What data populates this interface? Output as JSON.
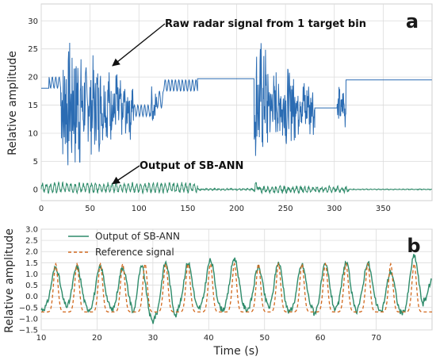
{
  "colors": {
    "raw": "#2b6cb3",
    "ann": "#2e8b6a",
    "reference": "#d2691e",
    "grid": "#dcdcdc",
    "axis": "#7f7f7f"
  },
  "chart_data": [
    {
      "type": "line",
      "panel_label": "a",
      "title": "",
      "xlabel": "",
      "ylabel": "Relative amplitude",
      "xlim": [
        0,
        400
      ],
      "ylim": [
        -2,
        33
      ],
      "xticks": [
        0,
        50,
        100,
        150,
        200,
        250,
        300,
        350
      ],
      "xtick_labels": [
        "0",
        "50",
        "100",
        "150",
        "200",
        "250",
        "300",
        "350"
      ],
      "yticks": [
        0,
        5,
        10,
        15,
        20,
        25,
        30
      ],
      "ytick_labels": [
        "0",
        "5",
        "10",
        "15",
        "20",
        "25",
        "30"
      ],
      "grid": true,
      "annotations": [
        {
          "text": "Raw radar signal from 1 target bin",
          "x": 73,
          "y": 22
        },
        {
          "text": "Output of SB-ANN",
          "x": 73,
          "y": 1
        }
      ],
      "series": [
        {
          "name": "Raw radar signal",
          "segments": [
            {
              "x0": 0,
              "x1": 8,
              "base": 18,
              "osc_amp": 0,
              "period": 4,
              "noise": 0
            },
            {
              "x0": 8,
              "x1": 20,
              "base": 19,
              "osc_amp": 1,
              "period": 3.5,
              "noise": 0
            },
            {
              "x0": 20,
              "x1": 40,
              "base": 15,
              "osc_amp": 2,
              "period": 4,
              "noise": 10
            },
            {
              "x0": 40,
              "x1": 60,
              "base": 15,
              "osc_amp": 2,
              "period": 4,
              "noise": 7
            },
            {
              "x0": 60,
              "x1": 80,
              "base": 15,
              "osc_amp": 2,
              "period": 4,
              "noise": 5
            },
            {
              "x0": 80,
              "x1": 95,
              "base": 14,
              "osc_amp": 2,
              "period": 4,
              "noise": 3.5
            },
            {
              "x0": 95,
              "x1": 112,
              "base": 14,
              "osc_amp": 1,
              "period": 3.5,
              "noise": 0
            },
            {
              "x0": 112,
              "x1": 118,
              "base": 15,
              "osc_amp": 1,
              "period": 3.5,
              "noise": 3
            },
            {
              "x0": 118,
              "x1": 125,
              "base": 16,
              "osc_amp": 1.5,
              "period": 4,
              "noise": 0
            },
            {
              "x0": 125,
              "x1": 160,
              "base": 18.5,
              "osc_amp": 1,
              "period": 3.5,
              "noise": 0
            },
            {
              "x0": 160,
              "x1": 218,
              "base": 19.7,
              "osc_amp": 0,
              "period": 4,
              "noise": 0
            },
            {
              "x0": 218,
              "x1": 232,
              "base": 16,
              "osc_amp": 2,
              "period": 4,
              "noise": 9
            },
            {
              "x0": 232,
              "x1": 260,
              "base": 15,
              "osc_amp": 2,
              "period": 4,
              "noise": 6
            },
            {
              "x0": 260,
              "x1": 280,
              "base": 15,
              "osc_amp": 2,
              "period": 4,
              "noise": 4
            },
            {
              "x0": 280,
              "x1": 303,
              "base": 14.5,
              "osc_amp": 0,
              "period": 4,
              "noise": 0
            },
            {
              "x0": 303,
              "x1": 312,
              "base": 14.5,
              "osc_amp": 1,
              "period": 4,
              "noise": 3
            },
            {
              "x0": 312,
              "x1": 400,
              "base": 19.5,
              "osc_amp": 0,
              "period": 4,
              "noise": 0
            }
          ]
        },
        {
          "name": "Output of SB-ANN",
          "segments": [
            {
              "x0": 0,
              "x1": 160,
              "base": 0.3,
              "osc_amp": 0.7,
              "period": 4.2,
              "noise": 0.3
            },
            {
              "x0": 160,
              "x1": 218,
              "base": 0,
              "osc_amp": 0.1,
              "period": 4.2,
              "noise": 0.1
            },
            {
              "x0": 218,
              "x1": 222,
              "base": 0.5,
              "osc_amp": 0.6,
              "period": 3,
              "noise": 0.5
            },
            {
              "x0": 222,
              "x1": 315,
              "base": 0,
              "osc_amp": 0.4,
              "period": 4.2,
              "noise": 0.3
            },
            {
              "x0": 315,
              "x1": 400,
              "base": 0,
              "osc_amp": 0.05,
              "period": 4.2,
              "noise": 0.05
            }
          ]
        }
      ]
    },
    {
      "type": "line",
      "panel_label": "b",
      "title": "",
      "xlabel": "Time (s)",
      "ylabel": "Relative amplitude",
      "xlim": [
        10,
        80
      ],
      "ylim": [
        -1.5,
        3.0
      ],
      "xticks": [
        10,
        20,
        30,
        40,
        50,
        60,
        70
      ],
      "xtick_labels": [
        "10",
        "20",
        "30",
        "40",
        "50",
        "60",
        "70"
      ],
      "yticks": [
        -1.5,
        -1.0,
        -0.5,
        0.0,
        0.5,
        1.0,
        1.5,
        2.0,
        2.5,
        3.0
      ],
      "ytick_labels": [
        "−1.5",
        "−1.0",
        "−0.5",
        "0.0",
        "0.5",
        "1.0",
        "1.5",
        "2.0",
        "2.5",
        "3.0"
      ],
      "grid": true,
      "legend": {
        "placement": "top-left",
        "entries": [
          "Output of SB-ANN",
          "Reference signal"
        ]
      },
      "series": [
        {
          "name": "Output of SB-ANN",
          "peaks": [
            12.6,
            16.4,
            20.6,
            24.6,
            28.0,
            32.3,
            36.3,
            40.3,
            44.6,
            48.9,
            52.5,
            56.7,
            60.9,
            64.6,
            68.5,
            72.6,
            76.8,
            80.0
          ],
          "peak_values": [
            1.3,
            1.3,
            1.3,
            1.3,
            1.3,
            1.5,
            1.5,
            1.6,
            1.7,
            1.3,
            1.5,
            1.4,
            1.4,
            1.5,
            1.5,
            1.1,
            1.8,
            0.7
          ],
          "trough_values": [
            -0.6,
            -0.7,
            -0.7,
            -0.8,
            -1.3,
            -1.1,
            -0.8,
            -0.7,
            -0.7,
            -0.7,
            -0.9,
            -0.7,
            -0.9,
            -0.9,
            -0.7,
            -0.9,
            -0.9,
            -0.7
          ],
          "width": 1.5
        },
        {
          "name": "Reference signal",
          "peaks": [
            12.6,
            16.4,
            20.6,
            24.6,
            28.6,
            32.3,
            36.3,
            40.3,
            44.6,
            48.9,
            52.5,
            56.7,
            60.9,
            64.6,
            68.5,
            72.6,
            76.8
          ],
          "peak_value": 1.45,
          "trough_value": -0.7,
          "width": 1.0
        }
      ]
    }
  ]
}
